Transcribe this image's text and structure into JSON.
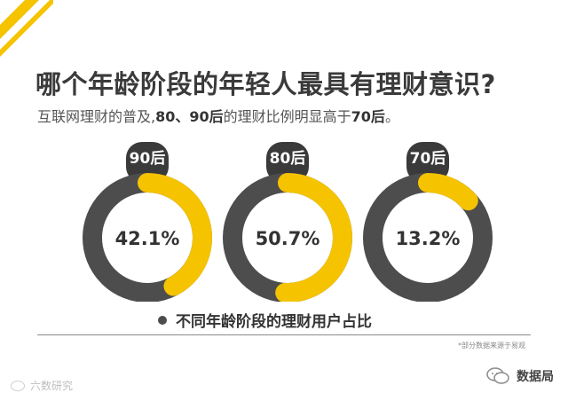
{
  "header": {
    "title": "哪个年龄阶段的年轻人最具有理财意识?",
    "subtitle_parts": [
      {
        "text": "互联网理财的普及,",
        "bold": false
      },
      {
        "text": "80、90后",
        "bold": true
      },
      {
        "text": "的理财比例明显高于",
        "bold": false
      },
      {
        "text": "70后",
        "bold": true
      },
      {
        "text": "。",
        "bold": false
      }
    ]
  },
  "colors": {
    "accent": "#F5C300",
    "ring_dark": "#4D4D4D",
    "badge": "#3A3A3A",
    "text_dark": "#333333"
  },
  "chart_data": {
    "type": "pie",
    "style": "donut",
    "categories": [
      "90后",
      "80后",
      "70后"
    ],
    "values": [
      42.1,
      50.7,
      13.2
    ],
    "value_labels": [
      "42.1%",
      "50.7%",
      "13.2%"
    ],
    "unit": "%",
    "title": "",
    "legend": "不同年龄阶段的理财用户占比"
  },
  "footer": {
    "source_note": "*部分数据来源于易观",
    "watermark_left": "六数研究",
    "account_name": "数据局"
  },
  "icons": {
    "wechat": "wechat-icon",
    "legend_marker": "dot-icon"
  }
}
